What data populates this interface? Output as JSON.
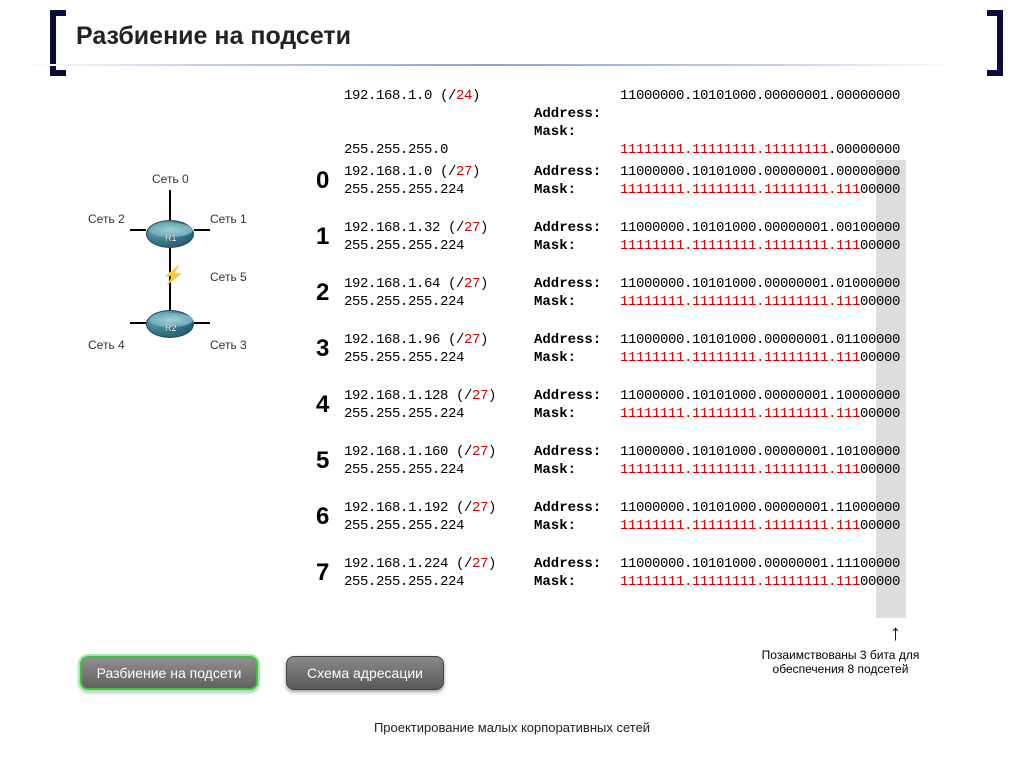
{
  "slide": {
    "title": "Разбиение на подсети",
    "footer": "Проектирование малых корпоративных сетей"
  },
  "diagram": {
    "router1": "R1",
    "router2": "R2",
    "net0": "Сеть 0",
    "net1": "Сеть 1",
    "net2": "Сеть 2",
    "net3": "Сеть 3",
    "net4": "Сеть 4",
    "net5": "Сеть 5"
  },
  "labels": {
    "address": "Address:",
    "mask": "Mask:"
  },
  "header_row": {
    "ip": "192.168.1.0 (/",
    "prefix": "24",
    "ip_end": ")",
    "mask": "255.255.255.0",
    "addr_bin": "11000000.10101000.00000001.00000000",
    "mask_red": "11111111.11111111.11111111",
    "mask_tail": ".00000000"
  },
  "rows": [
    {
      "idx": "0",
      "ip": "192.168.1.0 (/",
      "prefix": "27",
      "mask": "255.255.255.224",
      "addr_pre": "11000000.10101000.00000001.",
      "subnet": "000",
      "host": "00000",
      "mask_red": "11111111.11111111.11111111.111",
      "mask_tail": "00000"
    },
    {
      "idx": "1",
      "ip": "192.168.1.32 (/",
      "prefix": "27",
      "mask": "255.255.255.224",
      "addr_pre": "11000000.10101000.00000001.",
      "subnet": "001",
      "host": "00000",
      "mask_red": "11111111.11111111.11111111.111",
      "mask_tail": "00000"
    },
    {
      "idx": "2",
      "ip": "192.168.1.64 (/",
      "prefix": "27",
      "mask": "255.255.255.224",
      "addr_pre": "11000000.10101000.00000001.",
      "subnet": "010",
      "host": "00000",
      "mask_red": "11111111.11111111.11111111.111",
      "mask_tail": "00000"
    },
    {
      "idx": "3",
      "ip": "192.168.1.96 (/",
      "prefix": "27",
      "mask": "255.255.255.224",
      "addr_pre": "11000000.10101000.00000001.",
      "subnet": "011",
      "host": "00000",
      "mask_red": "11111111.11111111.11111111.111",
      "mask_tail": "00000"
    },
    {
      "idx": "4",
      "ip": "192.168.1.128 (/",
      "prefix": "27",
      "mask": "255.255.255.224",
      "addr_pre": "11000000.10101000.00000001.",
      "subnet": "100",
      "host": "00000",
      "mask_red": "11111111.11111111.11111111.111",
      "mask_tail": "00000"
    },
    {
      "idx": "5",
      "ip": "192.168.1.160 (/",
      "prefix": "27",
      "mask": "255.255.255.224",
      "addr_pre": "11000000.10101000.00000001.",
      "subnet": "101",
      "host": "00000",
      "mask_red": "11111111.11111111.11111111.111",
      "mask_tail": "00000"
    },
    {
      "idx": "6",
      "ip": "192.168.1.192 (/",
      "prefix": "27",
      "mask": "255.255.255.224",
      "addr_pre": "11000000.10101000.00000001.",
      "subnet": "110",
      "host": "00000",
      "mask_red": "11111111.11111111.11111111.111",
      "mask_tail": "00000"
    },
    {
      "idx": "7",
      "ip": "192.168.1.224 (/",
      "prefix": "27",
      "mask": "255.255.255.224",
      "addr_pre": "11000000.10101000.00000001.",
      "subnet": "111",
      "host": "00000",
      "mask_red": "11111111.11111111.11111111.111",
      "mask_tail": "00000"
    }
  ],
  "annotation": "Позаимствованы 3 бита для\nобеспечения 8 подсетей",
  "buttons": {
    "subnetting": "Разбиение на подсети",
    "addressing": "Схема адресации"
  },
  "colors": {
    "red": "#d40000",
    "bracket": "#0b0b3b",
    "highlight": "rgba(180,180,180,0.45)"
  }
}
